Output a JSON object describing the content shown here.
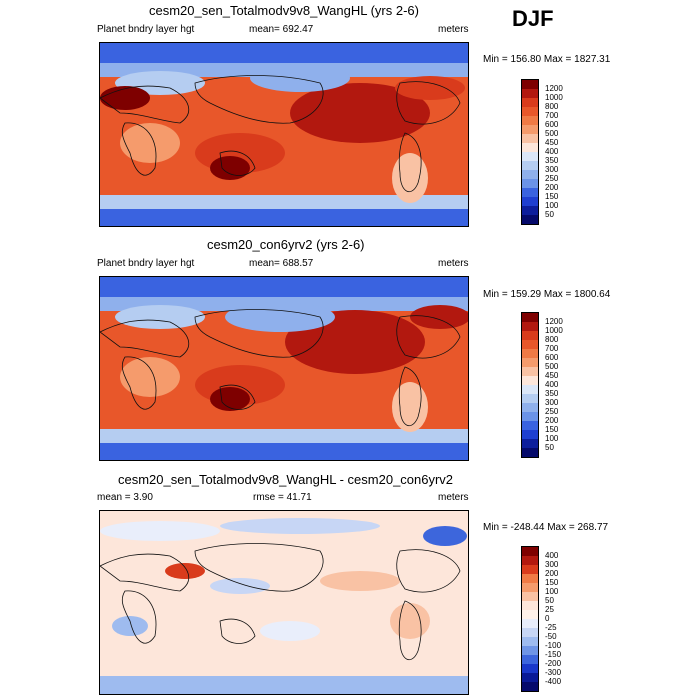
{
  "season": "DJF",
  "units_label": "meters",
  "chart_data": [
    {
      "type": "heatmap",
      "title": "cesm20_sen_Totalmodv9v8_WangHL (yrs 2-6)",
      "variable_label": "Planet bndry layer hgt",
      "stat_text": "mean= 692.47",
      "units": "meters",
      "minmax_text": "Min = 156.80 Max = 1827.31",
      "min": 156.8,
      "max": 1827.31,
      "mean": 692.47,
      "levels": [
        "1200",
        "1000",
        "800",
        "700",
        "600",
        "500",
        "450",
        "400",
        "350",
        "300",
        "250",
        "200",
        "150",
        "100",
        "50"
      ],
      "colors": [
        "#7e0000",
        "#b2180f",
        "#d93b1c",
        "#e8572a",
        "#f07a45",
        "#f59b6c",
        "#f9c2a4",
        "#fde6da",
        "#dbe6f7",
        "#b5cdf1",
        "#8fb0ec",
        "#6b93e8",
        "#3a63e0",
        "#1f3fd1",
        "#0d1e9c",
        "#050a6b"
      ]
    },
    {
      "type": "heatmap",
      "title": "cesm20_con6yrv2 (yrs 2-6)",
      "variable_label": "Planet bndry layer hgt",
      "stat_text": "mean= 688.57",
      "units": "meters",
      "minmax_text": "Min = 159.29 Max = 1800.64",
      "min": 159.29,
      "max": 1800.64,
      "mean": 688.57,
      "levels": [
        "1200",
        "1000",
        "800",
        "700",
        "600",
        "500",
        "450",
        "400",
        "350",
        "300",
        "250",
        "200",
        "150",
        "100",
        "50"
      ],
      "colors": [
        "#7e0000",
        "#b2180f",
        "#d93b1c",
        "#e8572a",
        "#f07a45",
        "#f59b6c",
        "#f9c2a4",
        "#fde6da",
        "#dbe6f7",
        "#b5cdf1",
        "#8fb0ec",
        "#6b93e8",
        "#3a63e0",
        "#1f3fd1",
        "#0d1e9c",
        "#050a6b"
      ]
    },
    {
      "type": "heatmap",
      "title": "cesm20_sen_Totalmodv9v8_WangHL - cesm20_con6yrv2",
      "mean_text": "mean =   3.90",
      "rmse_text": "rmse =  41.71",
      "units": "meters",
      "minmax_text": "Min = -248.44 Max = 268.77",
      "min": -248.44,
      "max": 268.77,
      "mean": 3.9,
      "rmse": 41.71,
      "levels": [
        "400",
        "300",
        "200",
        "150",
        "100",
        "50",
        "25",
        "0",
        "-25",
        "-50",
        "-100",
        "-150",
        "-200",
        "-300",
        "-400"
      ],
      "colors": [
        "#7e0000",
        "#b2180f",
        "#d93b1c",
        "#f07a45",
        "#f59b6c",
        "#f9c2a4",
        "#fde6da",
        "#fff2ea",
        "#e9eefb",
        "#c7d6f5",
        "#9ebbef",
        "#6f95e6",
        "#3d66dc",
        "#1a38c9",
        "#0a1a96",
        "#050a6b"
      ]
    }
  ]
}
